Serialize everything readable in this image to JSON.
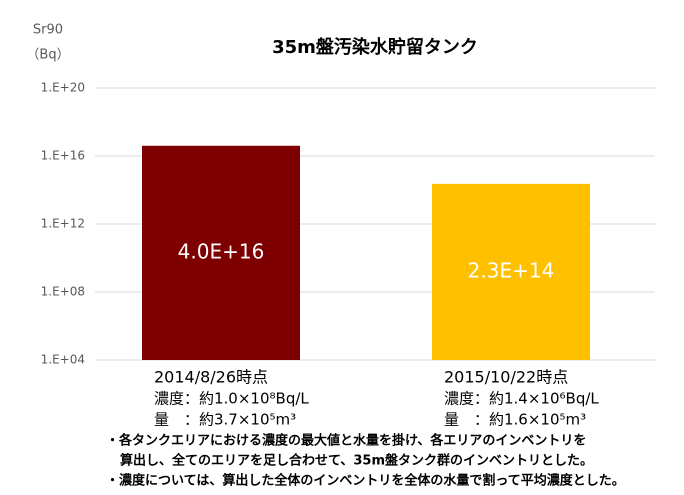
{
  "chart_data": {
    "type": "bar",
    "title": "35m盤汚染水貯留タンク",
    "y_label": [
      "Sr90",
      "（Bq）"
    ],
    "categories": [
      "2014/8/26時点",
      "2015/10/22時点"
    ],
    "category_notes": [
      [
        "濃度：約1.0×10⁸Bq/L",
        "量　：約3.7×10⁵m³"
      ],
      [
        "濃度：約1.4×10⁶Bq/L",
        "量　：約1.6×10⁵m³"
      ]
    ],
    "values": [
      4e+16,
      230000000000000.0
    ],
    "value_labels": [
      "4.0E+16",
      "2.3E+14"
    ],
    "colors": [
      "#7f0000",
      "#ffc000"
    ],
    "log_scale": true,
    "ylim": [
      10000.0,
      1e+20
    ],
    "yticks": [
      {
        "value": 10000.0,
        "label": "1.E+04"
      },
      {
        "value": 100000000.0,
        "label": "1.E+08"
      },
      {
        "value": 1000000000000.0,
        "label": "1.E+12"
      },
      {
        "value": 1e+16,
        "label": "1.E+16"
      },
      {
        "value": 1e+20,
        "label": "1.E+20"
      }
    ],
    "grid": true,
    "notes": [
      [
        "・各タンクエリアにおける濃度の最大値と水量を掛け、各エリアのインベントリを",
        "算出し、全てのエリアを足し合わせて、35m盤タンク群のインベントリとした。"
      ],
      [
        "・濃度については、算出した全体のインベントリを全体の水量で割って平均濃度とした。"
      ]
    ]
  }
}
